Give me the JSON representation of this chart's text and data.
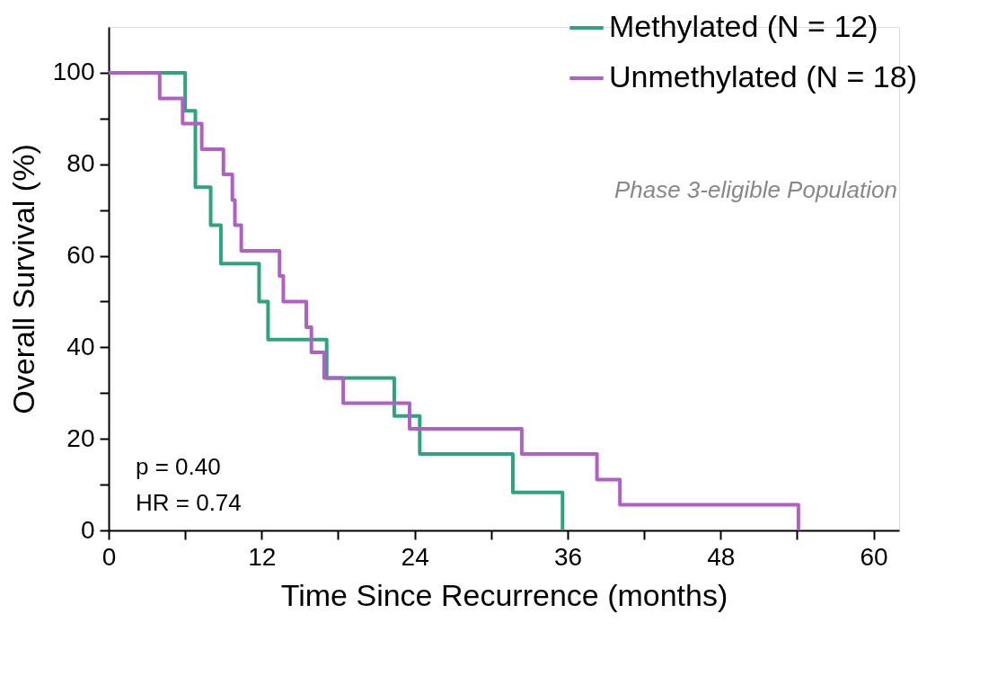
{
  "chart_data": {
    "type": "step",
    "xlabel": "Time Since Recurrence (months)",
    "ylabel": "Overall Survival (%)",
    "xlim": [
      0,
      62
    ],
    "ylim": [
      0,
      110
    ],
    "xticks": [
      0,
      {
        "value": 6,
        "label": null
      },
      12,
      {
        "value": 18,
        "label": null
      },
      24,
      {
        "value": 30,
        "label": null
      },
      36,
      {
        "value": 42,
        "label": null
      },
      48,
      {
        "value": 54,
        "label": null
      },
      60
    ],
    "yticks": [
      0,
      {
        "value": 10,
        "label": null
      },
      20,
      {
        "value": 30,
        "label": null
      },
      40,
      {
        "value": 50,
        "label": null
      },
      60,
      {
        "value": 70,
        "label": null
      },
      80,
      {
        "value": 90,
        "label": null
      },
      100
    ],
    "series": [
      {
        "name": "Methylated (N = 12)",
        "color": "#2fa37f",
        "x": [
          0,
          6.0,
          6.8,
          8.0,
          8.8,
          11.8,
          12.5,
          17.1,
          22.4,
          24.4,
          31.7,
          35.6
        ],
        "values": [
          100,
          91.7,
          75,
          66.7,
          58.3,
          50,
          41.7,
          33.3,
          25,
          16.7,
          8.3,
          0
        ]
      },
      {
        "name": "Unmethylated (N = 18)",
        "color": "#b05fc4",
        "x": [
          0,
          4.0,
          5.8,
          7.3,
          9.0,
          9.7,
          9.9,
          10.4,
          13.4,
          13.7,
          15.5,
          15.9,
          16.9,
          18.4,
          23.6,
          32.4,
          38.3,
          40.1,
          54.1
        ],
        "values": [
          100,
          94.4,
          88.9,
          83.3,
          77.8,
          72.2,
          66.7,
          61.1,
          55.6,
          50,
          44.4,
          38.9,
          33.3,
          27.8,
          22.2,
          16.7,
          11.1,
          5.6,
          0
        ]
      }
    ],
    "annotations": [
      "Phase 3-eligible Population",
      "p = 0.40",
      "HR = 0.74"
    ],
    "legend": "top right",
    "grid": false,
    "line_style": "solid",
    "marker": "none"
  }
}
